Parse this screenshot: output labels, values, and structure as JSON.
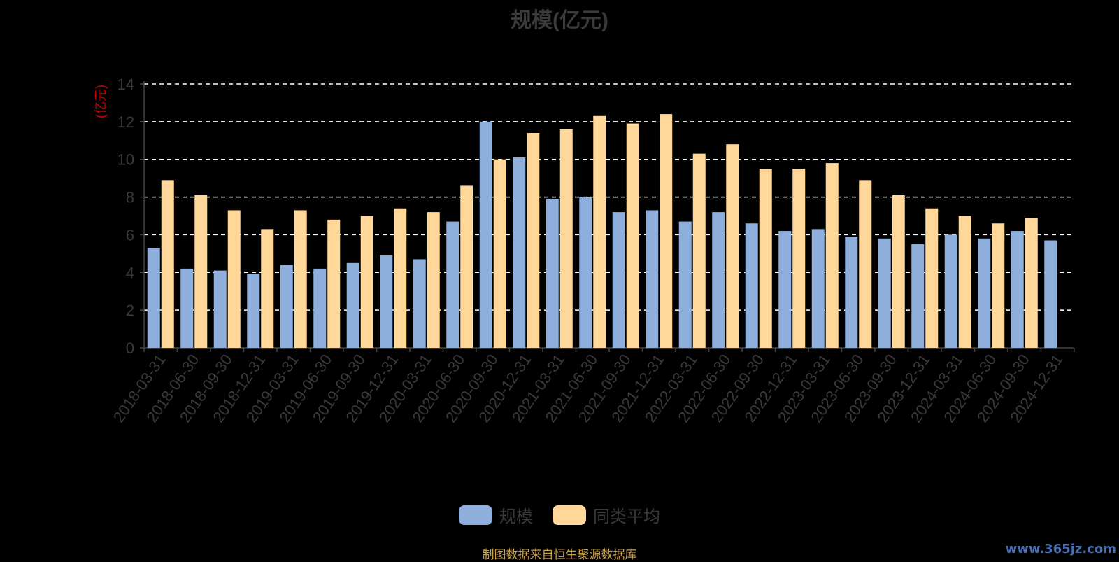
{
  "chart_data": {
    "type": "bar",
    "title": "规模(亿元)",
    "ylabel": "(亿元)",
    "ylim": [
      0,
      14
    ],
    "yticks": [
      0,
      2,
      4,
      6,
      8,
      10,
      12,
      14
    ],
    "grid": true,
    "legend_position": "bottom",
    "categories": [
      "2018-03-31",
      "2018-06-30",
      "2018-09-30",
      "2018-12-31",
      "2019-03-31",
      "2019-06-30",
      "2019-09-30",
      "2019-12-31",
      "2020-03-31",
      "2020-06-30",
      "2020-09-30",
      "2020-12-31",
      "2021-03-31",
      "2021-06-30",
      "2021-09-30",
      "2021-12-31",
      "2022-03-31",
      "2022-06-30",
      "2022-09-30",
      "2022-12-31",
      "2023-03-31",
      "2023-06-30",
      "2023-09-30",
      "2023-12-31",
      "2024-03-31",
      "2024-06-30",
      "2024-09-30",
      "2024-12-31"
    ],
    "series": [
      {
        "name": "规模",
        "color": "#8eaedc",
        "values": [
          5.3,
          4.2,
          4.1,
          3.9,
          4.4,
          4.2,
          4.5,
          4.9,
          4.7,
          6.7,
          12.0,
          10.1,
          7.9,
          8.0,
          7.2,
          7.3,
          6.7,
          7.2,
          6.6,
          6.2,
          6.3,
          5.9,
          5.8,
          5.5,
          6.0,
          5.8,
          6.2,
          5.7
        ]
      },
      {
        "name": "同类平均",
        "color": "#ffd899",
        "values": [
          8.9,
          8.1,
          7.3,
          6.3,
          7.3,
          6.8,
          7.0,
          7.4,
          7.2,
          8.6,
          10.0,
          11.4,
          11.6,
          12.3,
          11.9,
          12.4,
          10.3,
          10.8,
          9.5,
          9.5,
          9.8,
          8.9,
          8.1,
          7.4,
          7.0,
          6.6,
          6.9,
          null
        ]
      }
    ]
  },
  "footer": {
    "source_note": "制图数据来自恒生聚源数据库",
    "watermark": "www.365jz.com"
  }
}
